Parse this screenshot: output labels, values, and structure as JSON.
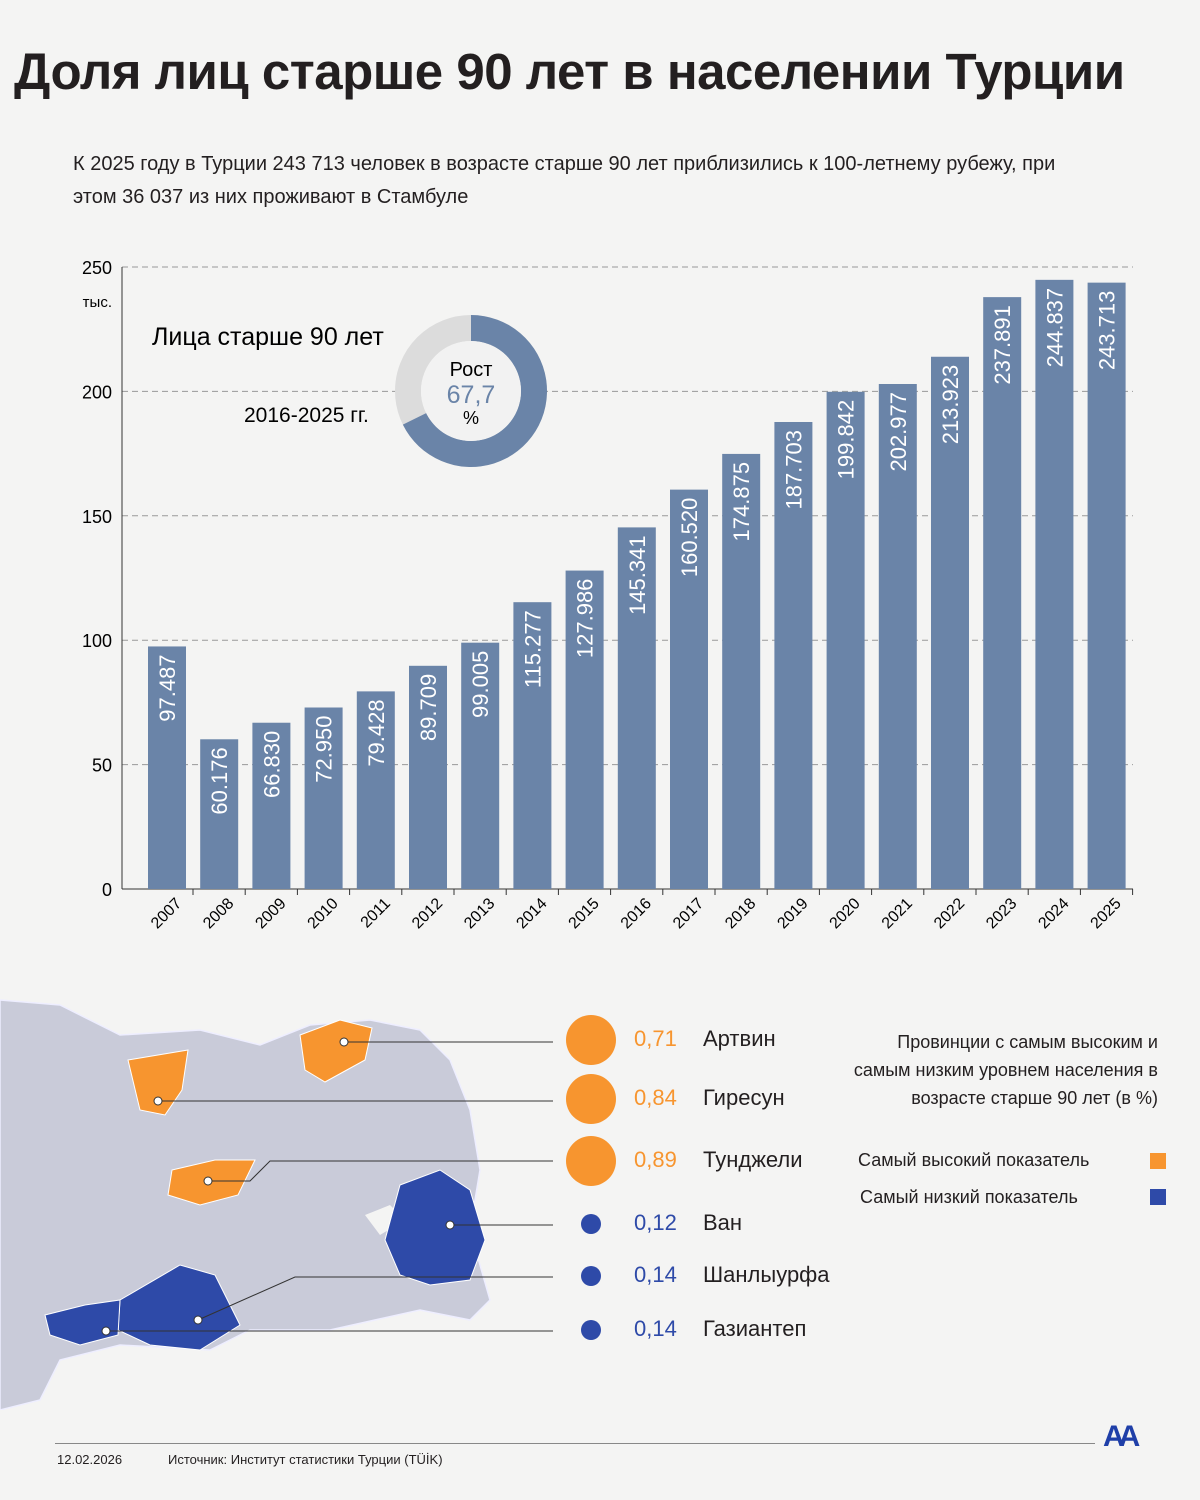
{
  "title": "Доля лиц старше 90 лет в населении Турции",
  "subtitle": "К 2025 году в Турции 243 713 человек в возрасте старше 90 лет приблизились к 100-летнему рубежу, при этом 36 037 из них проживают в Стамбуле",
  "colors": {
    "bar": "#6a84a8",
    "high": "#f7952f",
    "low": "#2e4aa8",
    "donut_rest": "#dcdcdc"
  },
  "chart_data": {
    "type": "bar",
    "categories": [
      "2007",
      "2008",
      "2009",
      "2010",
      "2011",
      "2012",
      "2013",
      "2014",
      "2015",
      "2016",
      "2017",
      "2018",
      "2019",
      "2020",
      "2021",
      "2022",
      "2023",
      "2024",
      "2025"
    ],
    "values": [
      97.487,
      60.176,
      66.83,
      72.95,
      79.428,
      89.709,
      99.005,
      115.277,
      127.986,
      145.341,
      160.52,
      174.875,
      187.703,
      199.842,
      202.977,
      213.923,
      237.891,
      244.837,
      243.713
    ],
    "value_labels": [
      "97.487",
      "60.176",
      "66.830",
      "72.950",
      "79.428",
      "89.709",
      "99.005",
      "115.277",
      "127.986",
      "145.341",
      "160.520",
      "174.875",
      "187.703",
      "199.842",
      "202.977",
      "213.923",
      "237.891",
      "244.837",
      "243.713"
    ],
    "ylim": [
      0,
      250
    ],
    "yticks": [
      "0",
      "50",
      "100",
      "150",
      "200",
      "250"
    ],
    "yunit": "тыс.",
    "grid": true
  },
  "inset": {
    "label": "Лица старше 90 лет",
    "period": "2016-2025 гг.",
    "growth_label": "Рост",
    "growth_value": "67,7",
    "growth_unit": "%",
    "growth_percent": 67.7
  },
  "provinces": {
    "legend_title": "Провинции с самым высоким и самым низким уровнем населения в возрасте старше 90 лет (в %)",
    "legend_high": "Самый высокий показатель",
    "legend_low": "Самый низкий показатель",
    "items": [
      {
        "name": "Артвин",
        "value": "0,71",
        "group": "high"
      },
      {
        "name": "Гиресун",
        "value": "0,84",
        "group": "high"
      },
      {
        "name": "Тунджели",
        "value": "0,89",
        "group": "high"
      },
      {
        "name": "Ван",
        "value": "0,12",
        "group": "low"
      },
      {
        "name": "Шанлыурфа",
        "value": "0,14",
        "group": "low"
      },
      {
        "name": "Газиантеп",
        "value": "0,14",
        "group": "low"
      }
    ]
  },
  "footer": {
    "date": "12.02.2026",
    "source": "Источник: Институт статистики Турции (TÜİK)",
    "logo": "AA"
  }
}
